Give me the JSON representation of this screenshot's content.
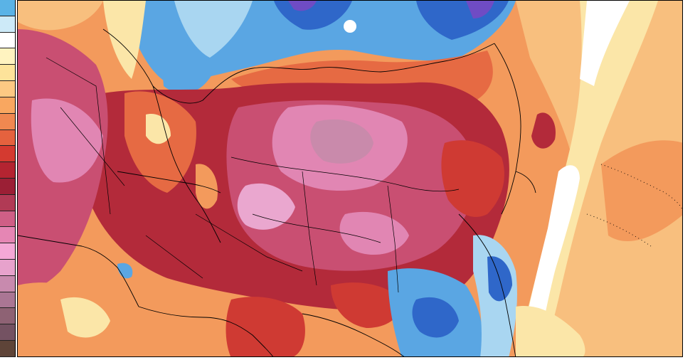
{
  "colorbar": {
    "colors": [
      "#5ab3e6",
      "#cdeaf8",
      "#ffffff",
      "#fff3c0",
      "#fde39a",
      "#fdc983",
      "#f9a760",
      "#f08850",
      "#e5623e",
      "#d43a30",
      "#b42431",
      "#9b1f35",
      "#b13a55",
      "#cf5f86",
      "#e586b4",
      "#f4a8d6",
      "#e7a2cc",
      "#c88aae",
      "#aa7694",
      "#8e6274",
      "#745262",
      "#5e4438"
    ]
  },
  "map": {
    "palette": {
      "deep_blue": "#2f67c9",
      "mid_blue": "#5aa6e3",
      "light_blue": "#a9d6f1",
      "pale_yellow": "#fbe6a8",
      "light_orange": "#f8bf7e",
      "orange": "#f39a5c",
      "red_orange": "#e66a43",
      "red": "#cf3a33",
      "crimson": "#b32a3a",
      "magenta": "#c94f72",
      "pink": "#e186b3",
      "light_pink": "#eaa7cf",
      "mauve": "#c98aab",
      "purple": "#6f4cc4",
      "white": "#ffffff"
    }
  }
}
